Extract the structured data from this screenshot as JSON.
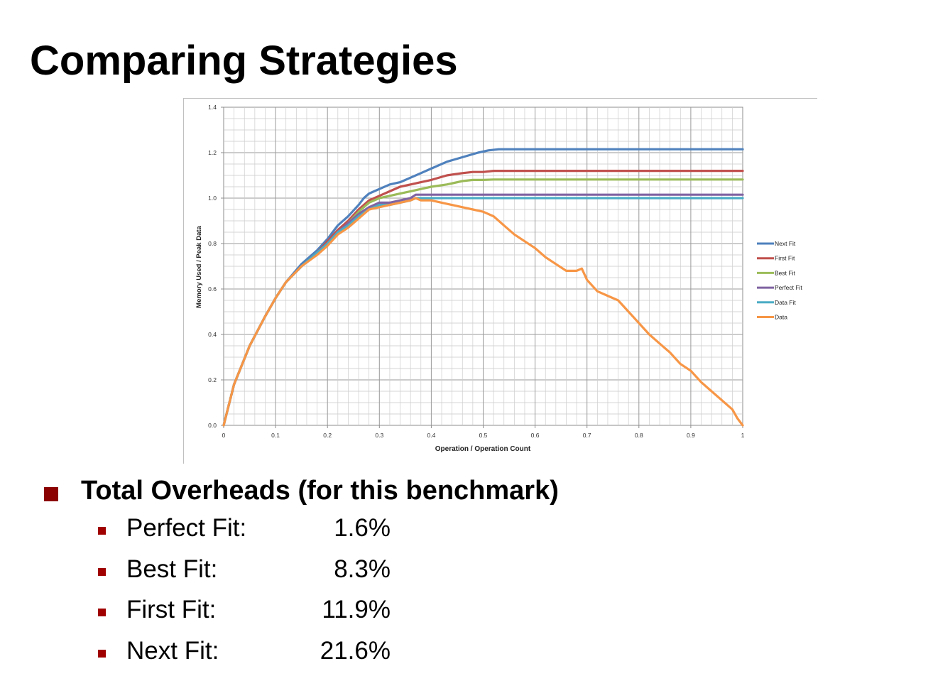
{
  "title": "Comparing Strategies",
  "chart_data": {
    "type": "line",
    "xlabel": "Operation / Operation Count",
    "ylabel": "Memory Used / Peak Data",
    "xlim": [
      0,
      1
    ],
    "ylim": [
      0,
      1.4
    ],
    "x_ticks": [
      "0",
      "0.1",
      "0.2",
      "0.3",
      "0.4",
      "0.5",
      "0.6",
      "0.7",
      "0.8",
      "0.9",
      "1"
    ],
    "y_ticks": [
      "0.0",
      "0.2",
      "0.4",
      "0.6",
      "0.8",
      "1.0",
      "1.2",
      "1.4"
    ],
    "grid": true,
    "legend_position": "right",
    "series": [
      {
        "name": "Next Fit",
        "color": "#4f81bd",
        "x": [
          0,
          0.02,
          0.05,
          0.08,
          0.1,
          0.12,
          0.15,
          0.18,
          0.2,
          0.22,
          0.24,
          0.26,
          0.27,
          0.28,
          0.29,
          0.3,
          0.32,
          0.34,
          0.36,
          0.38,
          0.4,
          0.43,
          0.46,
          0.49,
          0.51,
          0.53,
          0.6,
          0.7,
          0.8,
          0.9,
          1.0
        ],
        "y": [
          0,
          0.18,
          0.35,
          0.48,
          0.56,
          0.63,
          0.71,
          0.77,
          0.82,
          0.88,
          0.92,
          0.97,
          1.0,
          1.02,
          1.03,
          1.04,
          1.06,
          1.07,
          1.09,
          1.11,
          1.13,
          1.16,
          1.18,
          1.2,
          1.21,
          1.215,
          1.215,
          1.215,
          1.215,
          1.215,
          1.215
        ]
      },
      {
        "name": "First Fit",
        "color": "#c0504d",
        "x": [
          0,
          0.02,
          0.05,
          0.08,
          0.1,
          0.12,
          0.15,
          0.18,
          0.2,
          0.22,
          0.24,
          0.26,
          0.28,
          0.3,
          0.32,
          0.34,
          0.36,
          0.38,
          0.4,
          0.43,
          0.46,
          0.48,
          0.5,
          0.52,
          0.6,
          0.7,
          0.8,
          0.9,
          1.0
        ],
        "y": [
          0,
          0.18,
          0.35,
          0.48,
          0.56,
          0.63,
          0.7,
          0.76,
          0.81,
          0.86,
          0.9,
          0.95,
          0.99,
          1.01,
          1.03,
          1.05,
          1.06,
          1.07,
          1.08,
          1.1,
          1.11,
          1.115,
          1.115,
          1.12,
          1.12,
          1.12,
          1.12,
          1.12,
          1.12
        ]
      },
      {
        "name": "Best Fit",
        "color": "#9bbb59",
        "x": [
          0,
          0.02,
          0.05,
          0.08,
          0.1,
          0.12,
          0.15,
          0.18,
          0.2,
          0.22,
          0.24,
          0.26,
          0.28,
          0.3,
          0.32,
          0.34,
          0.36,
          0.38,
          0.4,
          0.43,
          0.46,
          0.48,
          0.5,
          0.52,
          0.6,
          0.7,
          0.8,
          0.9,
          1.0
        ],
        "y": [
          0,
          0.18,
          0.35,
          0.48,
          0.56,
          0.63,
          0.7,
          0.76,
          0.8,
          0.85,
          0.89,
          0.94,
          0.98,
          1.0,
          1.01,
          1.02,
          1.03,
          1.04,
          1.05,
          1.06,
          1.075,
          1.08,
          1.08,
          1.082,
          1.082,
          1.082,
          1.082,
          1.082,
          1.082
        ]
      },
      {
        "name": "Perfect Fit",
        "color": "#8064a2",
        "x": [
          0,
          0.02,
          0.05,
          0.08,
          0.1,
          0.12,
          0.15,
          0.18,
          0.2,
          0.22,
          0.24,
          0.26,
          0.28,
          0.3,
          0.32,
          0.34,
          0.36,
          0.37,
          0.4,
          0.5,
          0.6,
          0.7,
          0.8,
          0.9,
          1.0
        ],
        "y": [
          0,
          0.18,
          0.35,
          0.48,
          0.56,
          0.63,
          0.7,
          0.76,
          0.8,
          0.85,
          0.89,
          0.93,
          0.96,
          0.98,
          0.98,
          0.99,
          1.0,
          1.015,
          1.015,
          1.015,
          1.015,
          1.015,
          1.015,
          1.015,
          1.015
        ]
      },
      {
        "name": "Data Fit",
        "color": "#4bacc6",
        "x": [
          0,
          0.02,
          0.05,
          0.08,
          0.1,
          0.12,
          0.15,
          0.18,
          0.2,
          0.22,
          0.24,
          0.26,
          0.28,
          0.3,
          0.32,
          0.34,
          0.36,
          0.37,
          0.4,
          0.5,
          0.6,
          0.7,
          0.8,
          0.9,
          1.0
        ],
        "y": [
          0,
          0.18,
          0.35,
          0.48,
          0.56,
          0.63,
          0.7,
          0.76,
          0.8,
          0.85,
          0.88,
          0.92,
          0.95,
          0.97,
          0.97,
          0.98,
          0.99,
          1.0,
          1.0,
          1.0,
          1.0,
          1.0,
          1.0,
          1.0,
          1.0
        ]
      },
      {
        "name": "Data",
        "color": "#f79646",
        "x": [
          0,
          0.02,
          0.05,
          0.08,
          0.1,
          0.12,
          0.15,
          0.18,
          0.2,
          0.22,
          0.24,
          0.26,
          0.28,
          0.3,
          0.32,
          0.34,
          0.36,
          0.37,
          0.38,
          0.4,
          0.42,
          0.44,
          0.46,
          0.48,
          0.5,
          0.52,
          0.54,
          0.56,
          0.58,
          0.6,
          0.62,
          0.64,
          0.66,
          0.68,
          0.69,
          0.7,
          0.72,
          0.74,
          0.76,
          0.78,
          0.8,
          0.82,
          0.84,
          0.86,
          0.88,
          0.9,
          0.92,
          0.94,
          0.96,
          0.98,
          0.99,
          1.0
        ],
        "y": [
          0,
          0.18,
          0.35,
          0.48,
          0.56,
          0.63,
          0.7,
          0.75,
          0.79,
          0.84,
          0.87,
          0.91,
          0.95,
          0.96,
          0.97,
          0.98,
          0.99,
          1.0,
          0.99,
          0.99,
          0.98,
          0.97,
          0.96,
          0.95,
          0.94,
          0.92,
          0.88,
          0.84,
          0.81,
          0.78,
          0.74,
          0.71,
          0.68,
          0.68,
          0.69,
          0.64,
          0.59,
          0.57,
          0.55,
          0.5,
          0.45,
          0.4,
          0.36,
          0.32,
          0.27,
          0.24,
          0.19,
          0.15,
          0.11,
          0.07,
          0.03,
          0.0
        ]
      }
    ]
  },
  "overheads": {
    "heading": "Total Overheads (for this benchmark)",
    "items": [
      {
        "label": "Perfect Fit:",
        "value": "1.6%"
      },
      {
        "label": "Best Fit:",
        "value": "8.3%"
      },
      {
        "label": "First Fit:",
        "value": "11.9%"
      },
      {
        "label": "Next Fit:",
        "value": "21.6%"
      }
    ]
  },
  "colors": {
    "bullet_main": "#8b0000",
    "bullet_sub": "#a00000"
  }
}
